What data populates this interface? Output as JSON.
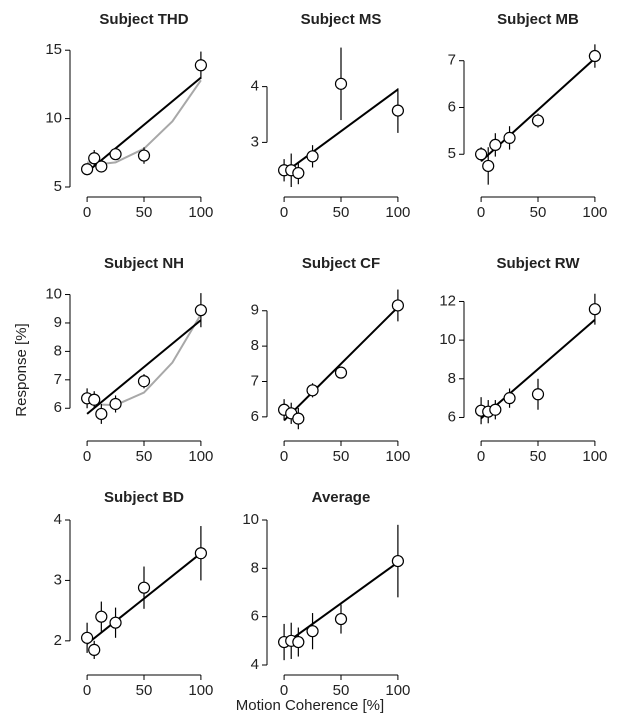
{
  "ylabel": "Response [%]",
  "xlabel": "Motion Coherence [%]",
  "chart_data": [
    {
      "type": "scatter",
      "title": "Subject THD",
      "x": [
        0,
        6.25,
        12.5,
        25,
        50,
        100
      ],
      "values": [
        6.3,
        7.1,
        6.5,
        7.4,
        7.3,
        13.9
      ],
      "errors": [
        0.4,
        0.6,
        0.4,
        0.3,
        0.6,
        1.0
      ],
      "fit": {
        "x": [
          0,
          100
        ],
        "values": [
          6.1,
          13.0
        ]
      },
      "curve": {
        "x": [
          0,
          12.5,
          25,
          50,
          75,
          100
        ],
        "values": [
          6.8,
          6.68,
          6.8,
          7.8,
          9.8,
          12.8
        ]
      },
      "xlim": [
        -8,
        108
      ],
      "ylim": [
        5,
        15.6
      ],
      "xticks": [
        0,
        50,
        100
      ],
      "yticks": [
        5,
        10,
        15
      ],
      "color": "#000000",
      "curve_color": "#a8a8a8"
    },
    {
      "type": "scatter",
      "title": "Subject MS",
      "x": [
        0,
        6.25,
        12.5,
        25,
        50,
        100
      ],
      "values": [
        2.5,
        2.5,
        2.45,
        2.75,
        4.05,
        3.57
      ],
      "errors": [
        0.2,
        0.3,
        0.2,
        0.2,
        0.65,
        0.4
      ],
      "fit": {
        "x": [
          0,
          100
        ],
        "values": [
          2.45,
          3.95
        ]
      },
      "xlim": [
        -8,
        108
      ],
      "ylim": [
        2.2,
        4.8
      ],
      "xticks": [
        0,
        50,
        100
      ],
      "yticks": [
        3,
        4
      ],
      "color": "#000000"
    },
    {
      "type": "scatter",
      "title": "Subject MB",
      "x": [
        0,
        6.25,
        12.5,
        25,
        50,
        100
      ],
      "values": [
        5.0,
        4.75,
        5.2,
        5.35,
        5.72,
        7.1
      ],
      "errors": [
        0.15,
        0.4,
        0.25,
        0.25,
        0.15,
        0.25
      ],
      "fit": {
        "x": [
          0,
          100
        ],
        "values": [
          4.85,
          7.05
        ]
      },
      "xlim": [
        -8,
        108
      ],
      "ylim": [
        4.3,
        7.4
      ],
      "xticks": [
        0,
        50,
        100
      ],
      "yticks": [
        5,
        6,
        7
      ],
      "color": "#000000"
    },
    {
      "type": "scatter",
      "title": "Subject NH",
      "x": [
        0,
        6.25,
        12.5,
        25,
        50,
        100
      ],
      "values": [
        6.35,
        6.3,
        5.8,
        6.15,
        6.95,
        9.45
      ],
      "errors": [
        0.35,
        0.3,
        0.35,
        0.3,
        0.25,
        0.6
      ],
      "fit": {
        "x": [
          0,
          100
        ],
        "values": [
          5.8,
          9.1
        ]
      },
      "curve": {
        "x": [
          12.5,
          25,
          50,
          75,
          100
        ],
        "values": [
          6.13,
          6.11,
          6.55,
          7.61,
          9.3
        ]
      },
      "xlim": [
        -8,
        108
      ],
      "ylim": [
        5.2,
        10.3
      ],
      "xticks": [
        0,
        50,
        100
      ],
      "yticks": [
        6,
        7,
        8,
        9,
        10
      ],
      "color": "#000000",
      "curve_color": "#a8a8a8"
    },
    {
      "type": "scatter",
      "title": "Subject CF",
      "x": [
        0,
        6.25,
        12.5,
        25,
        50,
        100
      ],
      "values": [
        6.2,
        6.1,
        5.95,
        6.75,
        7.25,
        9.15
      ],
      "errors": [
        0.3,
        0.3,
        0.3,
        0.2,
        0.15,
        0.45
      ],
      "fit": {
        "x": [
          0,
          100
        ],
        "values": [
          5.9,
          9.1
        ]
      },
      "xlim": [
        -8,
        108
      ],
      "ylim": [
        5.6,
        9.7
      ],
      "xticks": [
        0,
        50,
        100
      ],
      "yticks": [
        6,
        7,
        8,
        9
      ],
      "color": "#000000"
    },
    {
      "type": "scatter",
      "title": "Subject RW",
      "x": [
        0,
        6.25,
        12.5,
        25,
        50,
        100
      ],
      "values": [
        6.35,
        6.3,
        6.4,
        7.0,
        7.2,
        11.6
      ],
      "errors": [
        0.7,
        0.6,
        0.5,
        0.5,
        0.8,
        0.8
      ],
      "fit": {
        "x": [
          0,
          100
        ],
        "values": [
          5.95,
          11.05
        ]
      },
      "xlim": [
        -8,
        108
      ],
      "ylim": [
        5.3,
        12.8
      ],
      "xticks": [
        0,
        50,
        100
      ],
      "yticks": [
        6,
        8,
        10,
        12
      ],
      "color": "#000000"
    },
    {
      "type": "scatter",
      "title": "Subject BD",
      "x": [
        0,
        6.25,
        12.5,
        25,
        50,
        100
      ],
      "values": [
        2.05,
        1.85,
        2.4,
        2.3,
        2.88,
        3.45
      ],
      "errors": [
        0.25,
        0.15,
        0.25,
        0.25,
        0.35,
        0.45
      ],
      "fit": {
        "x": [
          0,
          100
        ],
        "values": [
          1.95,
          3.45
        ]
      },
      "xlim": [
        -8,
        108
      ],
      "ylim": [
        1.6,
        4.0
      ],
      "xticks": [
        0,
        50,
        100
      ],
      "yticks": [
        2,
        3,
        4
      ],
      "color": "#000000"
    },
    {
      "type": "scatter",
      "title": "Average",
      "x": [
        0,
        6.25,
        12.5,
        25,
        50,
        100
      ],
      "values": [
        4.95,
        5.0,
        4.95,
        5.4,
        5.9,
        8.3
      ],
      "errors": [
        0.75,
        0.75,
        0.6,
        0.75,
        0.6,
        1.5
      ],
      "fit": {
        "x": [
          0,
          100
        ],
        "values": [
          4.85,
          8.25
        ]
      },
      "xlim": [
        -8,
        108
      ],
      "ylim": [
        4,
        10
      ],
      "xticks": [
        0,
        50,
        100
      ],
      "yticks": [
        4,
        6,
        8,
        10
      ],
      "color": "#000000"
    }
  ]
}
